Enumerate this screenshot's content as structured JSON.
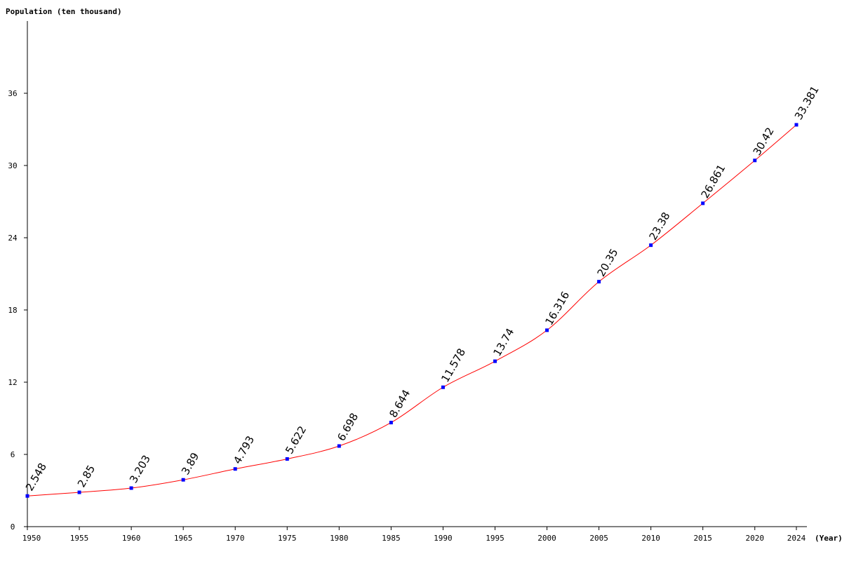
{
  "chart_data": {
    "type": "line",
    "title": "",
    "ylabel": "Population (ten thousand)",
    "xlabel": "(Year)",
    "x": [
      1950,
      1955,
      1960,
      1965,
      1970,
      1975,
      1980,
      1985,
      1990,
      1995,
      2000,
      2005,
      2010,
      2015,
      2020,
      2024
    ],
    "series": [
      {
        "values": [
          2.548,
          2.85,
          3.203,
          3.89,
          4.793,
          5.622,
          6.698,
          8.644,
          11.578,
          13.74,
          16.316,
          20.35,
          23.38,
          26.861,
          30.42,
          33.381
        ],
        "labels": [
          "2.548",
          "2.85",
          "3.203",
          "3.89",
          "4.793",
          "5.622",
          "6.698",
          "8.644",
          "11.578",
          "13.74",
          "16.316",
          "20.35",
          "23.38",
          "26.861",
          "30.42",
          "33.381"
        ],
        "line_color": "#ff0000",
        "marker_color": "#0000ff"
      }
    ],
    "xticks": [
      "1950",
      "1955",
      "1960",
      "1965",
      "1970",
      "1975",
      "1980",
      "1985",
      "1990",
      "1995",
      "2000",
      "2005",
      "2010",
      "2015",
      "2020",
      "2024"
    ],
    "yticks": [
      0,
      6,
      12,
      18,
      24,
      30,
      36
    ],
    "ylim": [
      0,
      42
    ],
    "xlim": [
      1950,
      2024
    ],
    "grid": false,
    "legend": "none"
  }
}
